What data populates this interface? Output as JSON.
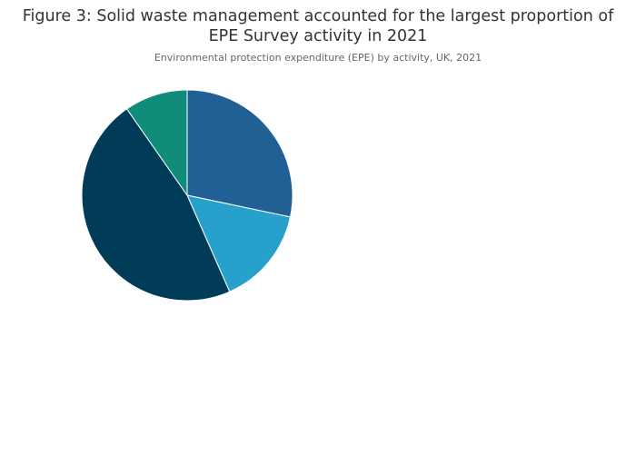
{
  "chart_data": {
    "type": "pie",
    "title_line1": "Figure 3: Solid waste management accounted for the largest proportion of",
    "title_line2": "EPE Survey activity in 2021",
    "subtitle": "Environmental protection expenditure (EPE) by activity, UK, 2021",
    "start": "top",
    "direction": "clockwise",
    "values": [
      28.3,
      15.1,
      46.9,
      9.7
    ],
    "colors": [
      "#206095",
      "#27a0cc",
      "#003c57",
      "#118c7b"
    ]
  }
}
